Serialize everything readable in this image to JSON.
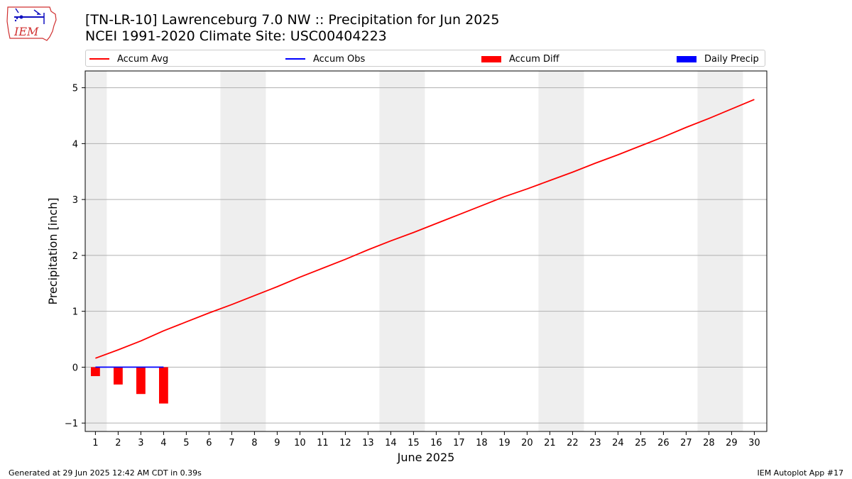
{
  "header": {
    "title_line1": "[TN-LR-10] Lawrenceburg 7.0 NW :: Precipitation for Jun 2025",
    "title_line2": "NCEI 1991-2020 Climate Site: USC00404223",
    "logo_text": "IEM"
  },
  "footer": {
    "left": "Generated at 29 Jun 2025 12:42 AM CDT in 0.39s",
    "right": "IEM Autoplot App #17"
  },
  "legend": {
    "items": [
      {
        "label": "Accum Avg",
        "kind": "line",
        "color": "#ff0000"
      },
      {
        "label": "Accum Obs",
        "kind": "line",
        "color": "#0000ff"
      },
      {
        "label": "Accum Diff",
        "kind": "patch",
        "color": "#ff0000"
      },
      {
        "label": "Daily Precip",
        "kind": "patch",
        "color": "#0000ff"
      }
    ]
  },
  "chart_data": {
    "type": "line",
    "xlabel": "June 2025",
    "ylabel": "Precipitation [inch]",
    "xlim": [
      0.55,
      30.55
    ],
    "ylim": [
      -1.15,
      5.3
    ],
    "x_ticks": [
      1,
      2,
      3,
      4,
      5,
      6,
      7,
      8,
      9,
      10,
      11,
      12,
      13,
      14,
      15,
      16,
      17,
      18,
      19,
      20,
      21,
      22,
      23,
      24,
      25,
      26,
      27,
      28,
      29,
      30
    ],
    "y_ticks": [
      -1,
      0,
      1,
      2,
      3,
      4,
      5
    ],
    "grid": "horizontal",
    "weekend_shading": [
      [
        0.5,
        1.5
      ],
      [
        6.5,
        8.5
      ],
      [
        13.5,
        15.5
      ],
      [
        20.5,
        22.5
      ],
      [
        27.5,
        29.5
      ]
    ],
    "weekend_color": "#eeeeee",
    "series": [
      {
        "name": "Accum Avg",
        "kind": "line",
        "color": "#ff0000",
        "x": [
          1,
          2,
          3,
          4,
          5,
          6,
          7,
          8,
          9,
          10,
          11,
          12,
          13,
          14,
          15,
          16,
          17,
          18,
          19,
          20,
          21,
          22,
          23,
          24,
          25,
          26,
          27,
          28,
          29,
          30
        ],
        "values": [
          0.16,
          0.31,
          0.47,
          0.65,
          0.81,
          0.97,
          1.12,
          1.28,
          1.44,
          1.61,
          1.77,
          1.93,
          2.1,
          2.26,
          2.41,
          2.57,
          2.73,
          2.89,
          3.05,
          3.19,
          3.34,
          3.49,
          3.65,
          3.8,
          3.96,
          4.12,
          4.29,
          4.45,
          4.62,
          4.79
        ]
      },
      {
        "name": "Accum Obs",
        "kind": "line",
        "color": "#0000ff",
        "x": [
          1,
          2,
          3,
          4
        ],
        "values": [
          0,
          0,
          0,
          0
        ]
      },
      {
        "name": "Accum Diff",
        "kind": "bar",
        "color": "#ff0000",
        "x": [
          1,
          2,
          3,
          4
        ],
        "values": [
          -0.16,
          -0.31,
          -0.48,
          -0.65
        ]
      },
      {
        "name": "Daily Precip",
        "kind": "bar",
        "color": "#0000ff",
        "x": [
          1,
          2,
          3,
          4
        ],
        "values": [
          0,
          0,
          0,
          0
        ]
      }
    ]
  }
}
